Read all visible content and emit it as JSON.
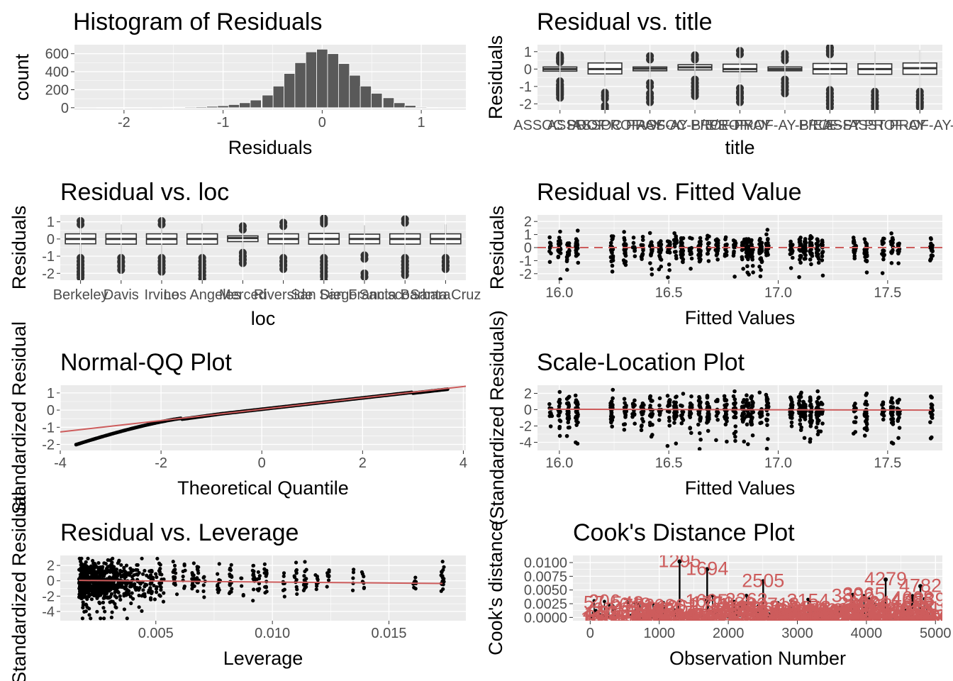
{
  "colors": {
    "panel": "#ebebeb",
    "grid_major": "#ffffff",
    "bar": "#595959",
    "point": "#000000",
    "ref_line": "#cd5c5c",
    "box_fill": "#ffffff",
    "box_line": "#333333"
  },
  "chart_data": [
    {
      "id": "hist",
      "type": "bar",
      "title": "Histogram of Residuals",
      "xlabel": "Residuals",
      "ylabel": "count",
      "xlim": [
        -2.5,
        1.45
      ],
      "ylim": [
        -25,
        700
      ],
      "xticks": [
        {
          "v": -2,
          "label": "-2"
        },
        {
          "v": -1,
          "label": "-1"
        },
        {
          "v": 0,
          "label": "0"
        },
        {
          "v": 1,
          "label": "1"
        }
      ],
      "yticks": [
        {
          "v": 0,
          "label": "0"
        },
        {
          "v": 200,
          "label": "200"
        },
        {
          "v": 400,
          "label": "400"
        },
        {
          "v": 600,
          "label": "600"
        }
      ],
      "bin_width": 0.111,
      "bins": [
        {
          "x": -2.22,
          "count": 1
        },
        {
          "x": -2.11,
          "count": 1
        },
        {
          "x": -2.0,
          "count": 1
        },
        {
          "x": -1.89,
          "count": 2
        },
        {
          "x": -1.78,
          "count": 2
        },
        {
          "x": -1.67,
          "count": 3
        },
        {
          "x": -1.55,
          "count": 4
        },
        {
          "x": -1.44,
          "count": 6
        },
        {
          "x": -1.33,
          "count": 8
        },
        {
          "x": -1.22,
          "count": 10
        },
        {
          "x": -1.11,
          "count": 15
        },
        {
          "x": -1.0,
          "count": 22
        },
        {
          "x": -0.89,
          "count": 35
        },
        {
          "x": -0.78,
          "count": 55
        },
        {
          "x": -0.67,
          "count": 85
        },
        {
          "x": -0.55,
          "count": 140
        },
        {
          "x": -0.44,
          "count": 240
        },
        {
          "x": -0.33,
          "count": 380
        },
        {
          "x": -0.22,
          "count": 500
        },
        {
          "x": -0.11,
          "count": 620
        },
        {
          "x": 0.0,
          "count": 650
        },
        {
          "x": 0.11,
          "count": 600
        },
        {
          "x": 0.22,
          "count": 490
        },
        {
          "x": 0.33,
          "count": 360
        },
        {
          "x": 0.44,
          "count": 240
        },
        {
          "x": 0.55,
          "count": 160
        },
        {
          "x": 0.67,
          "count": 110
        },
        {
          "x": 0.78,
          "count": 55
        },
        {
          "x": 0.89,
          "count": 25
        },
        {
          "x": 1.0,
          "count": 8
        },
        {
          "x": 1.11,
          "count": 2
        }
      ]
    },
    {
      "id": "title_box",
      "type": "box",
      "title": "Residual vs. title",
      "xlabel": "title",
      "ylabel": "Residuals",
      "ylim": [
        -2.35,
        1.4
      ],
      "yticks": [
        {
          "v": -2,
          "label": "-2"
        },
        {
          "v": -1,
          "label": "-1"
        },
        {
          "v": 0,
          "label": "0"
        },
        {
          "v": 1,
          "label": "1"
        }
      ],
      "categories": [
        "ASSOC PROF",
        "ASSOC PROF-AY",
        "ASSOC PROF-AY-B/E/E",
        "ASSOC PROF-FY",
        "PROF-AY",
        "PROF-AY-B/E/E",
        "PROF-FY",
        "ASST PROF-AY",
        "ASST PROF-AY-B/E/E"
      ],
      "tick_labels": [
        "ASSOC PROF",
        "ASSOC PROF-AY",
        "ASSOC PROF-AY-B/E/E",
        "ASSOC PROF-FY",
        "PROF-AY",
        "PROF-AY-B/E/E",
        "PROF-FY",
        "ASST PROF-AY",
        "ASST PROF-AY-B/E/E"
      ],
      "boxes": [
        {
          "q1": -0.12,
          "med": 0.0,
          "q3": 0.12,
          "lo": -0.5,
          "hi": 0.5,
          "out": [
            -1.45,
            -1.3,
            -1.1,
            -0.9,
            -0.7,
            0.6,
            0.7,
            0.8,
            0.65,
            -1.2,
            -1.0
          ]
        },
        {
          "q1": -0.28,
          "med": 0.0,
          "q3": 0.35,
          "lo": -1.0,
          "hi": 1.0,
          "out": [
            -1.35,
            -1.5,
            -2.1,
            -2.2
          ]
        },
        {
          "q1": -0.1,
          "med": 0.02,
          "q3": 0.12,
          "lo": -0.5,
          "hi": 0.5,
          "out": [
            -0.8,
            -1.4,
            -1.7,
            0.75
          ]
        },
        {
          "q1": -0.05,
          "med": 0.1,
          "q3": 0.25,
          "lo": -0.45,
          "hi": 0.65,
          "out": [
            -0.6,
            -0.8,
            -1.0,
            -1.2,
            -1.35,
            0.8,
            0.75
          ]
        },
        {
          "q1": -0.15,
          "med": 0.0,
          "q3": 0.28,
          "lo": -0.8,
          "hi": 0.9,
          "out": [
            -1.1,
            -1.4,
            -1.7,
            1.05
          ]
        },
        {
          "q1": -0.1,
          "med": 0.0,
          "q3": 0.12,
          "lo": -0.45,
          "hi": 0.55,
          "out": [
            -0.6,
            -0.8,
            -1.0,
            -1.2,
            0.7,
            0.88
          ]
        },
        {
          "q1": -0.28,
          "med": 0.0,
          "q3": 0.32,
          "lo": -1.0,
          "hi": 0.95,
          "out": [
            -1.2,
            -1.4,
            -1.6,
            -1.8,
            -2.0,
            1.05,
            1.2,
            1.25
          ]
        },
        {
          "q1": -0.3,
          "med": 0.0,
          "q3": 0.3,
          "lo": -1.1,
          "hi": 1.0,
          "out": [
            -1.3,
            -1.5,
            -1.7,
            -1.9,
            -2.1,
            -2.2
          ]
        },
        {
          "q1": -0.3,
          "med": 0.05,
          "q3": 0.35,
          "lo": -1.1,
          "hi": 1.1,
          "out": [
            -1.3,
            -1.5,
            -1.7,
            -1.9,
            -2.0
          ]
        }
      ]
    },
    {
      "id": "loc_box",
      "type": "box",
      "title": "Residual vs. loc",
      "xlabel": "loc",
      "ylabel": "Residuals",
      "ylim": [
        -2.4,
        1.4
      ],
      "yticks": [
        {
          "v": -2,
          "label": "-2"
        },
        {
          "v": -1,
          "label": "-1"
        },
        {
          "v": 0,
          "label": "0"
        },
        {
          "v": 1,
          "label": "1"
        }
      ],
      "categories": [
        "Berkeley",
        "Davis",
        "Irvine",
        "Los Angeles",
        "Merced",
        "Riverside",
        "San Diego",
        "San Francisco",
        "Santa Barbara",
        "Santa Cruz"
      ],
      "tick_labels": [
        "Berkeley",
        "Davis",
        "Irvine",
        "Los Angeles",
        "Merced",
        "Riverside",
        "San Diego",
        "San Francisco",
        "Santa Barbara",
        "Santa Cruz"
      ],
      "boxes": [
        {
          "q1": -0.28,
          "med": 0.0,
          "q3": 0.3,
          "lo": -0.95,
          "hi": 0.9,
          "out": [
            -1.1,
            -1.3,
            -1.5,
            -1.7,
            -1.9,
            -2.05,
            1.05
          ]
        },
        {
          "q1": -0.3,
          "med": 0.0,
          "q3": 0.3,
          "lo": -0.95,
          "hi": 0.85,
          "out": [
            -1.1,
            -1.35,
            -1.6
          ]
        },
        {
          "q1": -0.3,
          "med": 0.0,
          "q3": 0.3,
          "lo": -0.95,
          "hi": 0.9,
          "out": [
            -1.1,
            -1.3,
            -1.5,
            -1.7,
            1.05
          ]
        },
        {
          "q1": -0.3,
          "med": 0.0,
          "q3": 0.3,
          "lo": -0.95,
          "hi": 0.9,
          "out": [
            -1.1,
            -1.3,
            -1.5,
            -1.7,
            -1.9,
            -2.1,
            -2.3
          ]
        },
        {
          "q1": -0.15,
          "med": 0.05,
          "q3": 0.18,
          "lo": -0.6,
          "hi": 0.55,
          "out": [
            -0.8,
            -1.0,
            -1.2,
            0.75
          ]
        },
        {
          "q1": -0.28,
          "med": 0.0,
          "q3": 0.3,
          "lo": -0.9,
          "hi": 0.8,
          "out": [
            -1.1,
            -1.3,
            -1.55,
            0.95
          ]
        },
        {
          "q1": -0.3,
          "med": 0.0,
          "q3": 0.32,
          "lo": -1.0,
          "hi": 0.95,
          "out": [
            -1.1,
            -1.3,
            -1.5,
            -1.7,
            -1.9,
            -2.2,
            1.1,
            1.2
          ]
        },
        {
          "q1": -0.28,
          "med": 0.0,
          "q3": 0.28,
          "lo": -0.85,
          "hi": 0.8,
          "out": [
            -0.95,
            -2.0
          ]
        },
        {
          "q1": -0.3,
          "med": 0.0,
          "q3": 0.3,
          "lo": -0.95,
          "hi": 0.95,
          "out": [
            -1.1,
            -1.3,
            -1.5,
            -1.7,
            -1.9,
            1.15
          ]
        },
        {
          "q1": -0.28,
          "med": 0.0,
          "q3": 0.3,
          "lo": -0.95,
          "hi": 0.85,
          "out": [
            -1.1,
            -1.35,
            -1.55
          ]
        }
      ]
    },
    {
      "id": "fitted",
      "type": "scatter",
      "title": "Residual vs. Fitted Value",
      "xlabel": "Fitted Values",
      "ylabel": "Residuals",
      "xlim": [
        15.9,
        17.75
      ],
      "ylim": [
        -2.5,
        2.5
      ],
      "xticks": [
        {
          "v": 16.0,
          "label": "16.0"
        },
        {
          "v": 16.5,
          "label": "16.5"
        },
        {
          "v": 17.0,
          "label": "17.0"
        },
        {
          "v": 17.5,
          "label": "17.5"
        }
      ],
      "yticks": [
        {
          "v": -2,
          "label": "-2"
        },
        {
          "v": -1,
          "label": "-1"
        },
        {
          "v": 0,
          "label": "0"
        },
        {
          "v": 1,
          "label": "1"
        },
        {
          "v": 2,
          "label": "2"
        }
      ],
      "hline": 0
    },
    {
      "id": "qq",
      "type": "scatter",
      "title": "Normal-QQ Plot",
      "xlabel": "Theoretical Quantile",
      "ylabel": "Standardized Residual",
      "xlim": [
        -4.0,
        4.05
      ],
      "ylim": [
        -2.35,
        1.45
      ],
      "xticks": [
        {
          "v": -4,
          "label": "-4"
        },
        {
          "v": -2,
          "label": "-2"
        },
        {
          "v": 0,
          "label": "0"
        },
        {
          "v": 2,
          "label": "2"
        },
        {
          "v": 4,
          "label": "4"
        }
      ],
      "yticks": [
        {
          "v": -2,
          "label": "-2"
        },
        {
          "v": -1,
          "label": "-1"
        },
        {
          "v": 0,
          "label": "0"
        },
        {
          "v": 1,
          "label": "1"
        }
      ],
      "ref_line": {
        "intercept": 0.05,
        "slope": 0.33
      }
    },
    {
      "id": "scale_loc",
      "type": "scatter",
      "title": "Scale-Location Plot",
      "xlabel": "Fitted Values",
      "ylabel": "(Standardized Residuals)",
      "xlim": [
        15.9,
        17.75
      ],
      "ylim": [
        -5.0,
        3.0
      ],
      "xticks": [
        {
          "v": 16.0,
          "label": "16.0"
        },
        {
          "v": 16.5,
          "label": "16.5"
        },
        {
          "v": 17.0,
          "label": "17.0"
        },
        {
          "v": 17.5,
          "label": "17.5"
        }
      ],
      "yticks": [
        {
          "v": -4,
          "label": "-4"
        },
        {
          "v": -2,
          "label": "-2"
        },
        {
          "v": 0,
          "label": "0"
        },
        {
          "v": 2,
          "label": "2"
        }
      ],
      "ref_line": {
        "x0": 15.95,
        "y0": 0.05,
        "x1": 17.7,
        "y1": -0.05
      }
    },
    {
      "id": "leverage",
      "type": "scatter",
      "title": "Residual vs. Leverage",
      "xlabel": "Leverage",
      "ylabel": "Standardized Residual",
      "xlim": [
        0.0009,
        0.0183
      ],
      "ylim": [
        -5.2,
        3.3
      ],
      "xticks": [
        {
          "v": 0.005,
          "label": "0.005"
        },
        {
          "v": 0.01,
          "label": "0.010"
        },
        {
          "v": 0.015,
          "label": "0.015"
        }
      ],
      "yticks": [
        {
          "v": -4,
          "label": "-4"
        },
        {
          "v": -2,
          "label": "-2"
        },
        {
          "v": 0,
          "label": "0"
        },
        {
          "v": 2,
          "label": "2"
        }
      ],
      "ref_line": {
        "x0": 0.0017,
        "y0": 0.05,
        "x1": 0.0173,
        "y1": -0.35
      }
    },
    {
      "id": "cooks",
      "type": "scatter",
      "title": "Cook's Distance Plot",
      "xlabel": "Observation Number",
      "ylabel": "Cook's distance",
      "xlim": [
        -250,
        5100
      ],
      "ylim": [
        -0.0006,
        0.0113
      ],
      "xticks": [
        {
          "v": 0,
          "label": "0"
        },
        {
          "v": 1000,
          "label": "1000"
        },
        {
          "v": 2000,
          "label": "2000"
        },
        {
          "v": 3000,
          "label": "3000"
        },
        {
          "v": 4000,
          "label": "4000"
        },
        {
          "v": 5000,
          "label": "5000"
        }
      ],
      "yticks": [
        {
          "v": 0.0,
          "label": "0.0000"
        },
        {
          "v": 0.0025,
          "label": "0.0025"
        },
        {
          "v": 0.005,
          "label": "0.0050"
        },
        {
          "v": 0.0075,
          "label": "0.0075"
        },
        {
          "v": 0.01,
          "label": "0.0100"
        }
      ],
      "highlights": [
        {
          "obs": 1295,
          "d": 0.0102,
          "label": "1295"
        },
        {
          "obs": 1694,
          "d": 0.0088,
          "label": "1694"
        },
        {
          "obs": 2505,
          "d": 0.0066,
          "label": "2505"
        },
        {
          "obs": 4279,
          "d": 0.0069,
          "label": "4279"
        },
        {
          "obs": 4782,
          "d": 0.0057,
          "label": "4782"
        }
      ]
    }
  ]
}
